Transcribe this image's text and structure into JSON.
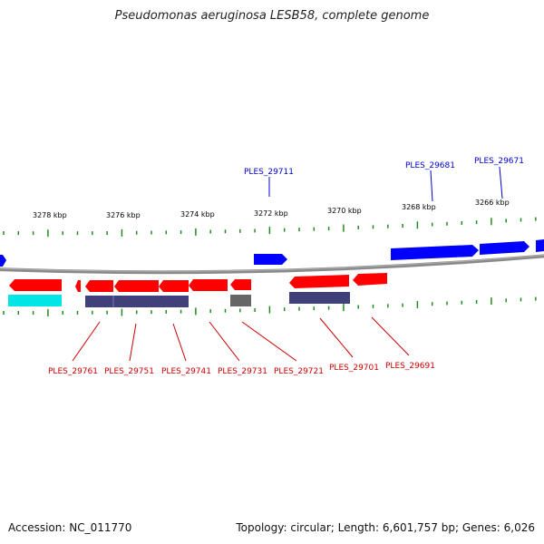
{
  "title": "Pseudomonas aeruginosa LESB58, complete genome",
  "accession": "Accession: NC_011770",
  "summary": "Topology: circular; Length: 6,601,757 bp; Genes: 6,026",
  "ticks": [
    "3278 kbp",
    "3276 kbp",
    "3274 kbp",
    "3272 kbp",
    "3270 kbp",
    "3268 kbp",
    "3266 kbp"
  ],
  "forward_gene_labels": [
    "PLES_29711",
    "PLES_29681",
    "PLES_29671"
  ],
  "reverse_gene_labels": [
    "PLES_29761",
    "PLES_29751",
    "PLES_29741",
    "PLES_29731",
    "PLES_29721",
    "PLES_29701",
    "PLES_29691"
  ],
  "colors": {
    "forward_cds": "#0000ff",
    "reverse_cds": "#ff0000",
    "feature_cyan": "#00e5e5",
    "feature_purple": "#40407a",
    "feature_gray": "#666666",
    "backbone": "#7a7a7a",
    "ticks": "#1f8c1f",
    "forward_label": "#0000cc",
    "reverse_label": "#cc0000"
  }
}
